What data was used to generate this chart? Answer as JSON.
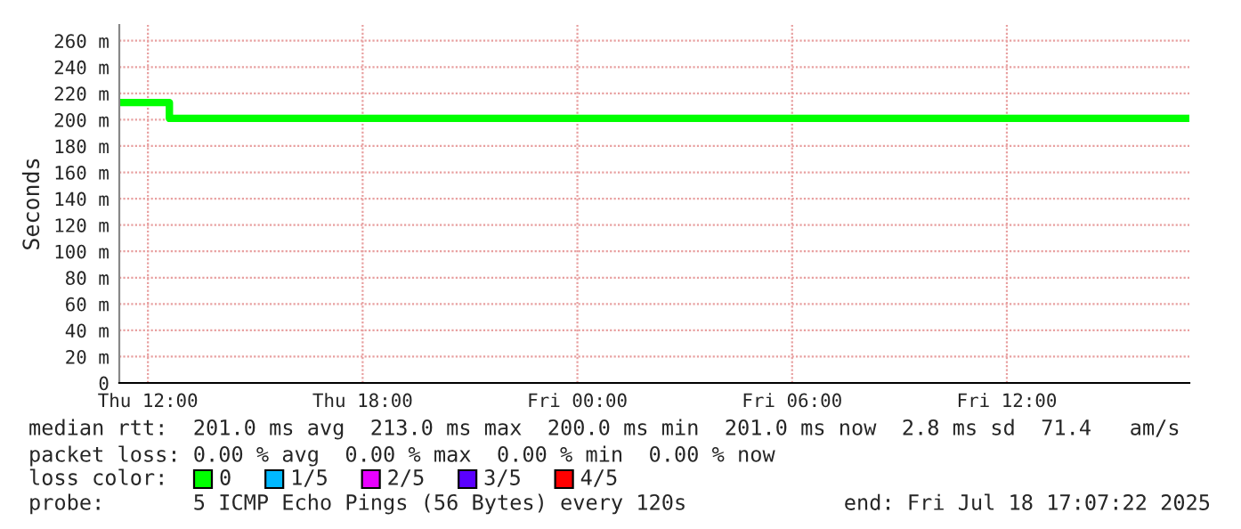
{
  "chart_data": {
    "type": "step",
    "ylabel": "Seconds",
    "x": [
      "2025-07-17T11:12",
      "2025-07-17T12:36",
      "2025-07-18T17:06"
    ],
    "series": [
      {
        "name": "0",
        "color": "#00ff00",
        "values": [
          213,
          201,
          201
        ]
      },
      {
        "name": "1/5",
        "color": "#00b8ff",
        "values": [
          null,
          null,
          null
        ]
      },
      {
        "name": "2/5",
        "color": "#e800ff",
        "values": [
          null,
          null,
          null
        ]
      },
      {
        "name": "3/5",
        "color": "#5a00ff",
        "values": [
          null,
          null,
          null
        ]
      },
      {
        "name": "4/5",
        "color": "#ff0000",
        "values": [
          null,
          null,
          null
        ]
      }
    ],
    "xlim": [
      "2025-07-17T11:12",
      "2025-07-18T17:06"
    ],
    "xticks": [
      {
        "value": "2025-07-17T12:00",
        "label": "Thu 12:00"
      },
      {
        "value": "2025-07-17T18:00",
        "label": "Thu 18:00"
      },
      {
        "value": "2025-07-18T00:00",
        "label": "Fri 00:00"
      },
      {
        "value": "2025-07-18T06:00",
        "label": "Fri 06:00"
      },
      {
        "value": "2025-07-18T12:00",
        "label": "Fri 12:00"
      }
    ],
    "ylim": [
      0,
      272
    ],
    "yticks": [
      0,
      {
        "value": 20,
        "label": "20 m"
      },
      {
        "value": 40,
        "label": "40 m"
      },
      {
        "value": 60,
        "label": "60 m"
      },
      {
        "value": 80,
        "label": "80 m"
      },
      {
        "value": 100,
        "label": "100 m"
      },
      {
        "value": 120,
        "label": "120 m"
      },
      {
        "value": 140,
        "label": "140 m"
      },
      {
        "value": 160,
        "label": "160 m"
      },
      {
        "value": 180,
        "label": "180 m"
      },
      {
        "value": 200,
        "label": "200 m"
      },
      {
        "value": 220,
        "label": "220 m"
      },
      {
        "value": 240,
        "label": "240 m"
      },
      {
        "value": 260,
        "label": "260 m"
      }
    ],
    "grid": true,
    "legend": "bottom",
    "annotations": [
      "median rtt:  201.0 ms avg  213.0 ms max  200.0 ms min  201.0 ms now  2.8 ms sd  71.4   am/s",
      "packet loss: 0.00 % avg  0.00 % max  0.00 % min  0.00 % now",
      "loss color:",
      "probe:       5 ICMP Echo Pings (56 Bytes) every 120s",
      "end: Fri Jul 18 17:07:22 2025"
    ]
  }
}
